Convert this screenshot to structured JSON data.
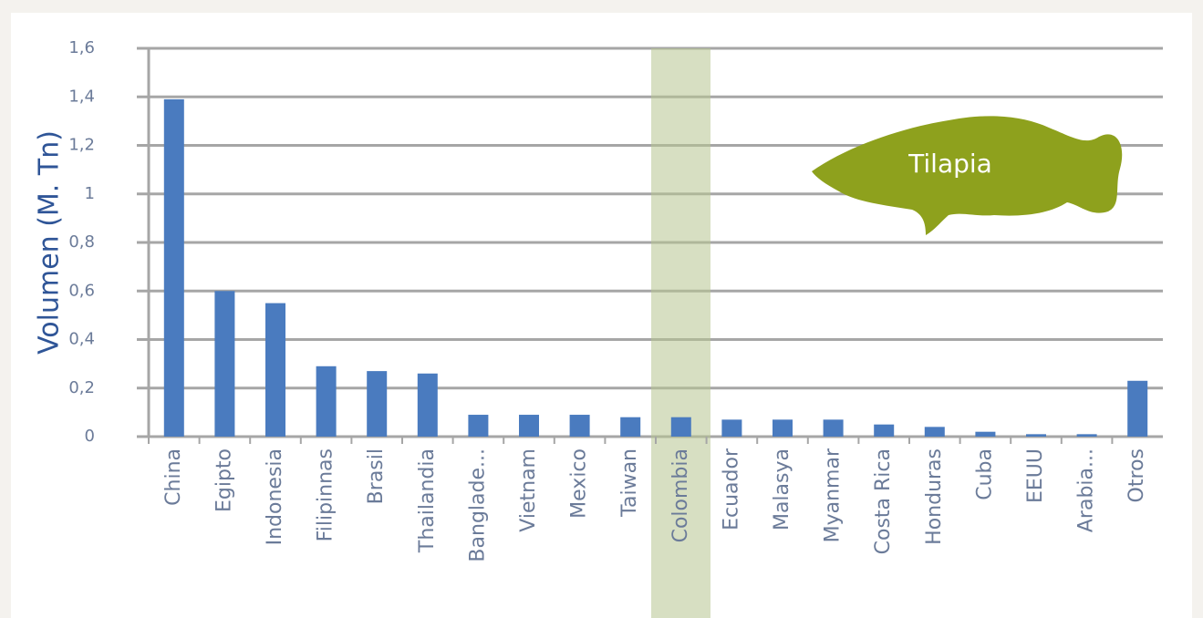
{
  "chart_data": {
    "type": "bar",
    "y_label": "Volumen (M. Tn)",
    "annotation": "Tilapia",
    "categories": [
      "China",
      "Egipto",
      "Indonesia",
      "Filipinnas",
      "Brasil",
      "Thailandia",
      "Banglade...",
      "Vietnam",
      "Mexico",
      "Taiwan",
      "Colombia",
      "Ecuador",
      "Malasya",
      "Myanmar",
      "Costa Rica",
      "Honduras",
      "Cuba",
      "EEUU",
      "Arabia...",
      "Otros"
    ],
    "values": [
      1.39,
      0.6,
      0.55,
      0.29,
      0.27,
      0.26,
      0.09,
      0.09,
      0.09,
      0.08,
      0.08,
      0.07,
      0.07,
      0.07,
      0.05,
      0.04,
      0.02,
      0.01,
      0.01,
      0.23
    ],
    "color": "#4a7bbf",
    "ylim": [
      0,
      1.6
    ],
    "yticks": [
      0,
      {
        "value": 0.2,
        "label": "0,2"
      },
      {
        "value": 0.4,
        "label": "0,4"
      },
      {
        "value": 0.6,
        "label": "0,6"
      },
      {
        "value": 0.8,
        "label": "0,8"
      },
      1,
      {
        "value": 1.2,
        "label": "1,2"
      },
      {
        "value": 1.4,
        "label": "1,4"
      },
      {
        "value": 1.6,
        "label": "1,6"
      }
    ],
    "grid": true
  }
}
